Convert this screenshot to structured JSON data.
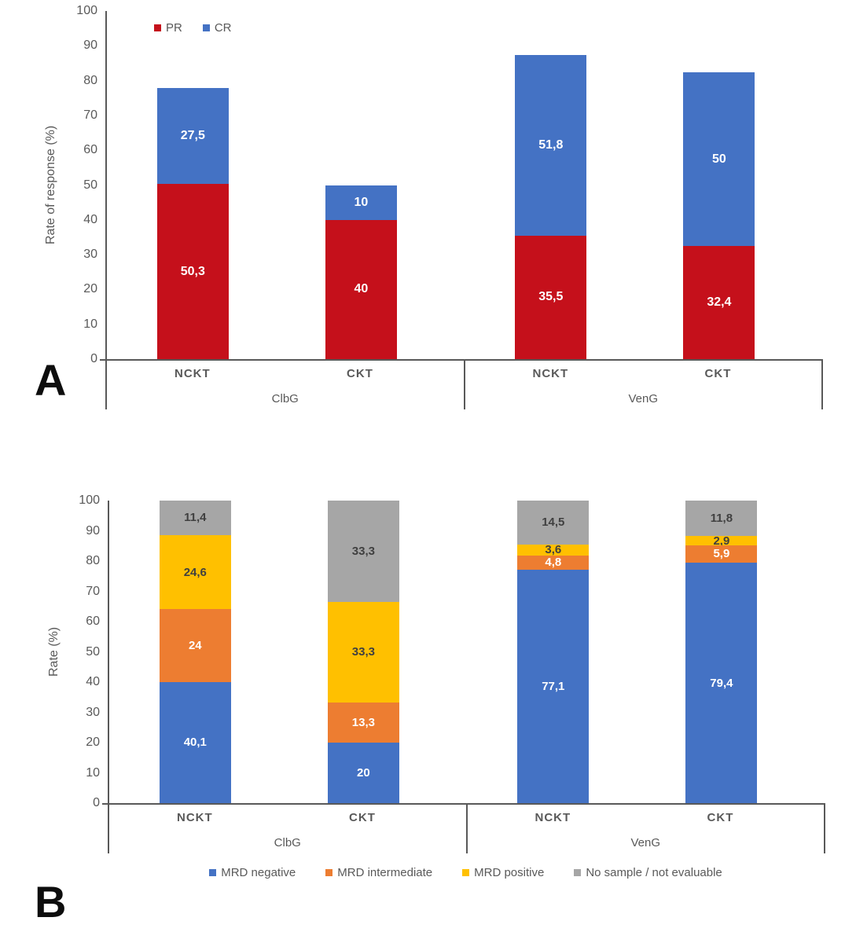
{
  "chart_data": [
    {
      "type": "bar",
      "stacked": true,
      "panel_label": "A",
      "ylabel": "Rate of response (%)",
      "ylim": [
        0,
        100
      ],
      "yticks": [
        "100",
        "90",
        "80",
        "70",
        "60",
        "50",
        "40",
        "30",
        "20",
        "10",
        "0"
      ],
      "grid": false,
      "legend": {
        "position": "top-inside-left",
        "items": [
          {
            "label": "PR",
            "color": "#c5101b"
          },
          {
            "label": "CR",
            "color": "#4472c4"
          }
        ]
      },
      "groups": [
        {
          "label": "ClbG",
          "bars": [
            {
              "label": "NCKT",
              "segments": [
                {
                  "series": "PR",
                  "value": 50.3,
                  "display": "50,3",
                  "color": "#c5101b",
                  "label_color": "#ffffff"
                },
                {
                  "series": "CR",
                  "value": 27.5,
                  "display": "27,5",
                  "color": "#4472c4",
                  "label_color": "#ffffff"
                }
              ]
            },
            {
              "label": "CKT",
              "segments": [
                {
                  "series": "PR",
                  "value": 40,
                  "display": "40",
                  "color": "#c5101b",
                  "label_color": "#ffffff"
                },
                {
                  "series": "CR",
                  "value": 10,
                  "display": "10",
                  "color": "#4472c4",
                  "label_color": "#ffffff"
                }
              ]
            }
          ]
        },
        {
          "label": "VenG",
          "bars": [
            {
              "label": "NCKT",
              "segments": [
                {
                  "series": "PR",
                  "value": 35.5,
                  "display": "35,5",
                  "color": "#c5101b",
                  "label_color": "#ffffff"
                },
                {
                  "series": "CR",
                  "value": 51.8,
                  "display": "51,8",
                  "color": "#4472c4",
                  "label_color": "#ffffff"
                }
              ]
            },
            {
              "label": "CKT",
              "segments": [
                {
                  "series": "PR",
                  "value": 32.4,
                  "display": "32,4",
                  "color": "#c5101b",
                  "label_color": "#ffffff"
                },
                {
                  "series": "CR",
                  "value": 50,
                  "display": "50",
                  "color": "#4472c4",
                  "label_color": "#ffffff"
                }
              ]
            }
          ]
        }
      ]
    },
    {
      "type": "bar",
      "stacked": true,
      "panel_label": "B",
      "ylabel": "Rate (%)",
      "ylim": [
        0,
        100
      ],
      "yticks": [
        "100",
        "90",
        "80",
        "70",
        "60",
        "50",
        "40",
        "30",
        "20",
        "10",
        "0"
      ],
      "grid": false,
      "legend": {
        "position": "bottom-center",
        "items": [
          {
            "label": "MRD negative",
            "color": "#4472c4"
          },
          {
            "label": "MRD intermediate",
            "color": "#ed7d31"
          },
          {
            "label": "MRD positive",
            "color": "#ffc000"
          },
          {
            "label": "No sample / not evaluable",
            "color": "#a6a6a6"
          }
        ]
      },
      "groups": [
        {
          "label": "ClbG",
          "bars": [
            {
              "label": "NCKT",
              "segments": [
                {
                  "series": "MRD negative",
                  "value": 40.1,
                  "display": "40,1",
                  "color": "#4472c4",
                  "label_color": "#ffffff"
                },
                {
                  "series": "MRD intermediate",
                  "value": 24,
                  "display": "24",
                  "color": "#ed7d31",
                  "label_color": "#ffffff"
                },
                {
                  "series": "MRD positive",
                  "value": 24.6,
                  "display": "24,6",
                  "color": "#ffc000",
                  "label_color": "#404040"
                },
                {
                  "series": "No sample / not evaluable",
                  "value": 11.4,
                  "display": "11,4",
                  "color": "#a6a6a6",
                  "label_color": "#404040"
                }
              ]
            },
            {
              "label": "CKT",
              "segments": [
                {
                  "series": "MRD negative",
                  "value": 20,
                  "display": "20",
                  "color": "#4472c4",
                  "label_color": "#ffffff"
                },
                {
                  "series": "MRD intermediate",
                  "value": 13.3,
                  "display": "13,3",
                  "color": "#ed7d31",
                  "label_color": "#ffffff"
                },
                {
                  "series": "MRD positive",
                  "value": 33.3,
                  "display": "33,3",
                  "color": "#ffc000",
                  "label_color": "#404040"
                },
                {
                  "series": "No sample / not evaluable",
                  "value": 33.3,
                  "display": "33,3",
                  "color": "#a6a6a6",
                  "label_color": "#404040"
                }
              ]
            }
          ]
        },
        {
          "label": "VenG",
          "bars": [
            {
              "label": "NCKT",
              "segments": [
                {
                  "series": "MRD negative",
                  "value": 77.1,
                  "display": "77,1",
                  "color": "#4472c4",
                  "label_color": "#ffffff"
                },
                {
                  "series": "MRD intermediate",
                  "value": 4.8,
                  "display": "4,8",
                  "color": "#ed7d31",
                  "label_color": "#ffffff"
                },
                {
                  "series": "MRD positive",
                  "value": 3.6,
                  "display": "3,6",
                  "color": "#ffc000",
                  "label_color": "#404040"
                },
                {
                  "series": "No sample / not evaluable",
                  "value": 14.5,
                  "display": "14,5",
                  "color": "#a6a6a6",
                  "label_color": "#404040"
                }
              ]
            },
            {
              "label": "CKT",
              "segments": [
                {
                  "series": "MRD negative",
                  "value": 79.4,
                  "display": "79,4",
                  "color": "#4472c4",
                  "label_color": "#ffffff"
                },
                {
                  "series": "MRD intermediate",
                  "value": 5.9,
                  "display": "5,9",
                  "color": "#ed7d31",
                  "label_color": "#ffffff"
                },
                {
                  "series": "MRD positive",
                  "value": 2.9,
                  "display": "2,9",
                  "color": "#ffc000",
                  "label_color": "#404040"
                },
                {
                  "series": "No sample / not evaluable",
                  "value": 11.8,
                  "display": "11,8",
                  "color": "#a6a6a6",
                  "label_color": "#404040"
                }
              ]
            }
          ]
        }
      ]
    }
  ]
}
